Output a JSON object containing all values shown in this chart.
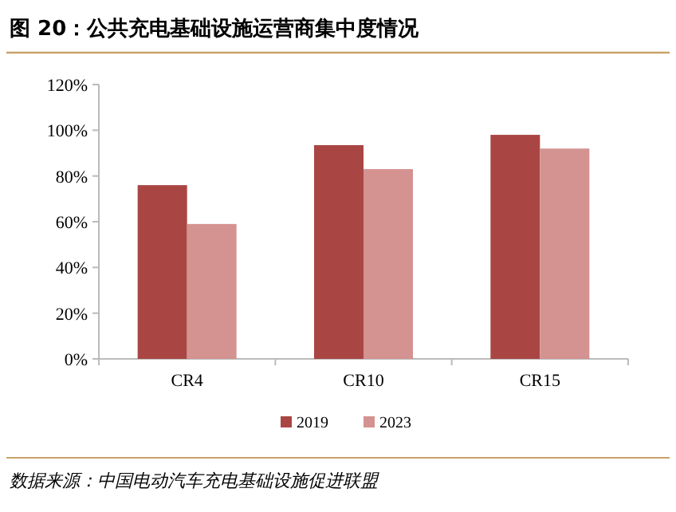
{
  "chart_data": {
    "type": "bar",
    "title": "图 20：公共充电基础设施运营商集中度情况",
    "categories": [
      "CR4",
      "CR10",
      "CR15"
    ],
    "series": [
      {
        "name": "2019",
        "color": "#a94643",
        "values": [
          76,
          93.5,
          98
        ]
      },
      {
        "name": "2023",
        "color": "#d49291",
        "values": [
          59,
          83,
          92
        ]
      }
    ],
    "ylim": [
      0,
      120
    ],
    "yticks": [
      {
        "value": 0,
        "label": "0%"
      },
      {
        "value": 20,
        "label": "20%"
      },
      {
        "value": 40,
        "label": "40%"
      },
      {
        "value": 60,
        "label": "60%"
      },
      {
        "value": 80,
        "label": "80%"
      },
      {
        "value": 100,
        "label": "100%"
      },
      {
        "value": 120,
        "label": "120%"
      }
    ],
    "legend": "bottom",
    "annotations": [
      "数据来源：中国电动汽车充电基础设施促进联盟"
    ]
  }
}
